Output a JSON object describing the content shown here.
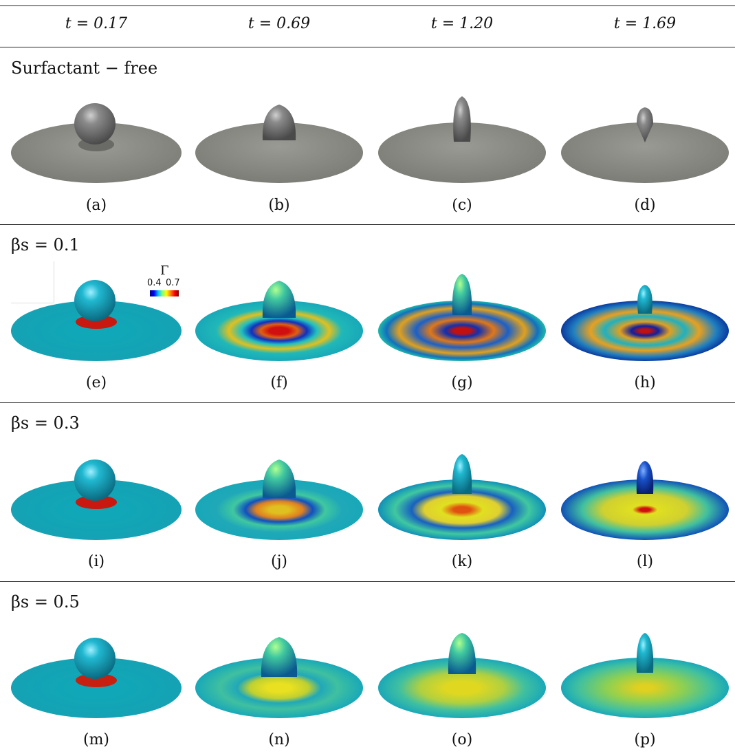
{
  "header": {
    "t1": "t = 0.17",
    "t2": "t = 0.69",
    "t3": "t = 1.20",
    "t4": "t = 1.69"
  },
  "rows": [
    {
      "label": "Surfactant − free",
      "captions": [
        "(a)",
        "(b)",
        "(c)",
        "(d)"
      ]
    },
    {
      "label": "βs = 0.1",
      "captions": [
        "(e)",
        "(f)",
        "(g)",
        "(h)"
      ]
    },
    {
      "label": "βs = 0.3",
      "captions": [
        "(i)",
        "(j)",
        "(k)",
        "(l)"
      ]
    },
    {
      "label": "βs = 0.5",
      "captions": [
        "(m)",
        "(n)",
        "(o)",
        "(p)"
      ]
    }
  ],
  "colorbar": {
    "symbol": "Γ",
    "min": "0.4",
    "max": "0.7"
  },
  "colors": {
    "surfactant_free": "#8a8a84",
    "base_cyan": "#10a8b8",
    "red": "#d81b10",
    "yellow": "#e8d020",
    "blue": "#1050c0"
  }
}
